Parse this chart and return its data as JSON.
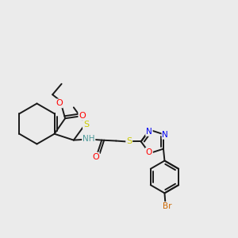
{
  "background_color": "#ebebeb",
  "bond_color": "#1a1a1a",
  "atom_colors": {
    "S": "#cccc00",
    "O": "#ff0000",
    "N": "#0000ee",
    "Br": "#cc6600",
    "H": "#4d9999",
    "C": "#1a1a1a"
  },
  "figsize": [
    3.0,
    3.0
  ],
  "dpi": 100
}
